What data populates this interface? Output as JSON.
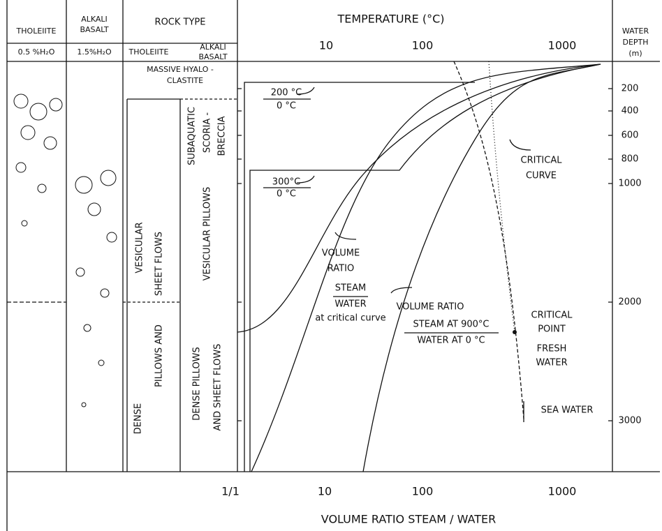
{
  "header": {
    "tholeiite": "THOLEIITE",
    "tholeiite_water": "0.5 %H₂O",
    "alkali_1": "ALKALI",
    "alkali_2": "BASALT",
    "alkali_water": "1.5%H₂O",
    "rock_type": "ROCK TYPE",
    "rock_tholeiite": "THOLEIITE",
    "rock_alkali_1": "ALKALI",
    "rock_alkali_2": "BASALT",
    "temperature": "TEMPERATURE  (°C)",
    "temp_ticks": [
      "10",
      "100",
      "1000"
    ],
    "depth_1": "WATER",
    "depth_2": "DEPTH",
    "depth_3": "(m)"
  },
  "depth_ticks": [
    "200",
    "400",
    "600",
    "800",
    "1000",
    "2000",
    "3000"
  ],
  "ratio_ticks": [
    "1/1",
    "10",
    "100",
    "1000"
  ],
  "ratio_title": "VOLUME RATIO    STEAM / WATER",
  "rocks": {
    "hyalo_1": "MASSIVE HYALO -",
    "hyalo_2": "CLASTITE",
    "vesicular": "VESICULAR",
    "sheet_flows": "SHEET FLOWS",
    "dense": "DENSE",
    "pillows_and": "PILLOWS AND",
    "subaquatic": "SUBAQUATIC",
    "scoria": "SCORIA -",
    "breccia": "BRECCIA",
    "vesicular_pillows": "VESICULAR PILLOWS",
    "dense_pillows": "DENSE PILLOWS",
    "and_sheet_flows": "AND SHEET FLOWS"
  },
  "annotations": {
    "t200": "200 °C",
    "t200_base": "0  °C",
    "t300": "300°C",
    "t300_base": "0  °C",
    "critical_1": "CRITICAL",
    "critical_2": "CURVE",
    "volume_1": "VOLUME",
    "volume_2": "RATIO",
    "steam": "STEAM",
    "water": "WATER",
    "at_critical": "at critical curve",
    "vr": "VOLUME RATIO",
    "steam900": "STEAM AT 900°C",
    "water0": "WATER AT  0  °C",
    "cp_1": "CRITICAL",
    "cp_2": "POINT",
    "fresh_1": "FRESH",
    "fresh_2": "WATER",
    "sea": "SEA WATER"
  }
}
